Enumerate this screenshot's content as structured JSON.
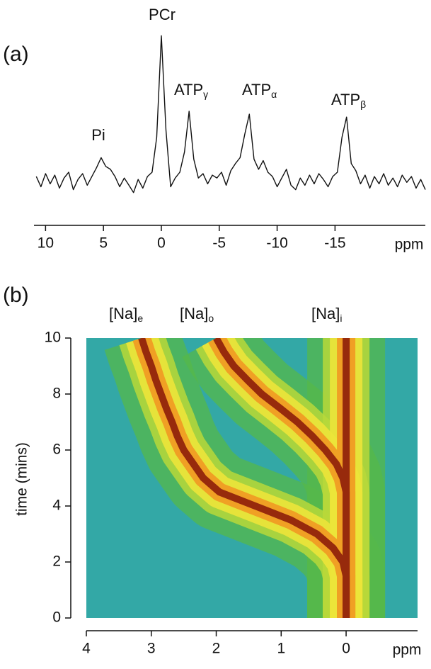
{
  "chart_data": [
    {
      "type": "line",
      "panel": "(a)",
      "xlabel": "ppm",
      "color": "#111111",
      "annotations": [
        {
          "text": "Pi"
        },
        {
          "text": "PCr"
        },
        {
          "text": "ATP",
          "subscript": "γ"
        },
        {
          "text": "ATP",
          "subscript": "α"
        },
        {
          "text": "ATP",
          "subscript": "β"
        }
      ],
      "x": [
        10.8,
        10.4,
        10,
        9.6,
        9.2,
        8.8,
        8.4,
        8,
        7.6,
        7.2,
        6.8,
        6.4,
        6,
        5.6,
        5.2,
        4.8,
        4.4,
        4,
        3.6,
        3.2,
        2.8,
        2.4,
        2,
        1.6,
        1.2,
        0.8,
        0.4,
        0,
        -0.4,
        -0.8,
        -1.2,
        -1.6,
        -2,
        -2.4,
        -2.8,
        -3.2,
        -3.6,
        -4,
        -4.4,
        -4.8,
        -5.2,
        -5.6,
        -6,
        -6.4,
        -6.8,
        -7.2,
        -7.6,
        -8,
        -8.4,
        -8.8,
        -9.2,
        -9.6,
        -10,
        -10.4,
        -10.8,
        -11.2,
        -11.6,
        -12,
        -12.4,
        -12.8,
        -13.2,
        -13.6,
        -14,
        -14.4,
        -14.8,
        -15.2,
        -15.6,
        -16,
        -16.4,
        -16.8,
        -17.2,
        -17.6,
        -18,
        -18.4,
        -18.8,
        -19.2,
        -19.6,
        -20,
        -20.4,
        -20.8,
        -21.2,
        -21.6,
        -22,
        -22.4,
        -22.8
      ],
      "values": [
        0.3,
        -0.4,
        0.5,
        -0.2,
        0.4,
        -0.5,
        0.2,
        0.6,
        -0.6,
        0.1,
        0.5,
        -0.3,
        0.3,
        0.9,
        1.6,
        1.0,
        0.8,
        0.3,
        -0.4,
        0.2,
        -0.3,
        -0.8,
        0.1,
        -0.5,
        0.3,
        0.6,
        3.0,
        10.0,
        3.5,
        -0.4,
        0.2,
        0.6,
        2.0,
        4.8,
        1.5,
        0.2,
        0.5,
        -0.2,
        0.4,
        0.2,
        0.6,
        -0.3,
        0.7,
        1.2,
        1.6,
        3.2,
        4.6,
        1.5,
        0.8,
        1.4,
        0.6,
        0.3,
        -0.4,
        0.2,
        0.8,
        -0.3,
        -0.6,
        0.2,
        -0.3,
        0.4,
        -0.2,
        0.5,
        0.1,
        -0.4,
        0.3,
        0.6,
        3.0,
        4.4,
        1.2,
        0.7,
        -0.2,
        0.4,
        -0.5,
        0.3,
        -0.2,
        0.5,
        -0.3,
        0.2,
        -0.4,
        0.4,
        -0.1,
        0.3,
        -0.5,
        0.1,
        -0.6
      ],
      "xlim": [
        11,
        -22.8
      ],
      "ylim": [
        -1.5,
        11
      ],
      "xticks": [
        10,
        5,
        0,
        -5,
        -10,
        -15
      ]
    },
    {
      "type": "contour",
      "panel": "(b)",
      "xlabel": "ppm",
      "ylabel": "time (mins)",
      "time": [
        0,
        0.5,
        1,
        1.5,
        2,
        2.5,
        3,
        3.5,
        4,
        4.5,
        5,
        5.5,
        6,
        6.5,
        7,
        7.5,
        8,
        8.5,
        9,
        9.5,
        10
      ],
      "series": [
        {
          "name": "[Na]",
          "subscript": "e",
          "values": [
            0,
            0,
            0,
            0,
            0.05,
            0.2,
            0.45,
            0.85,
            1.4,
            1.95,
            2.2,
            2.35,
            2.5,
            2.6,
            2.68,
            2.77,
            2.85,
            2.93,
            3.0,
            3.08,
            3.15
          ]
        },
        {
          "name": "[Na]",
          "subscript": "o",
          "values": [
            0,
            0,
            0,
            0,
            0,
            0,
            0,
            0,
            0,
            0,
            0.05,
            0.15,
            0.32,
            0.52,
            0.75,
            1.02,
            1.3,
            1.52,
            1.73,
            1.88,
            2.0
          ]
        },
        {
          "name": "[Na]",
          "subscript": "i",
          "values": [
            0,
            0,
            0,
            0,
            0,
            0,
            0,
            0,
            0,
            0,
            0,
            0,
            0,
            0,
            0,
            0,
            0,
            0,
            0,
            0,
            0
          ]
        }
      ],
      "xlim": [
        4,
        -1.1
      ],
      "ylim": [
        0,
        10
      ],
      "xticks": [
        4,
        3,
        2,
        1,
        0
      ],
      "yticks": [
        0,
        2,
        4,
        6,
        8,
        10
      ]
    }
  ]
}
